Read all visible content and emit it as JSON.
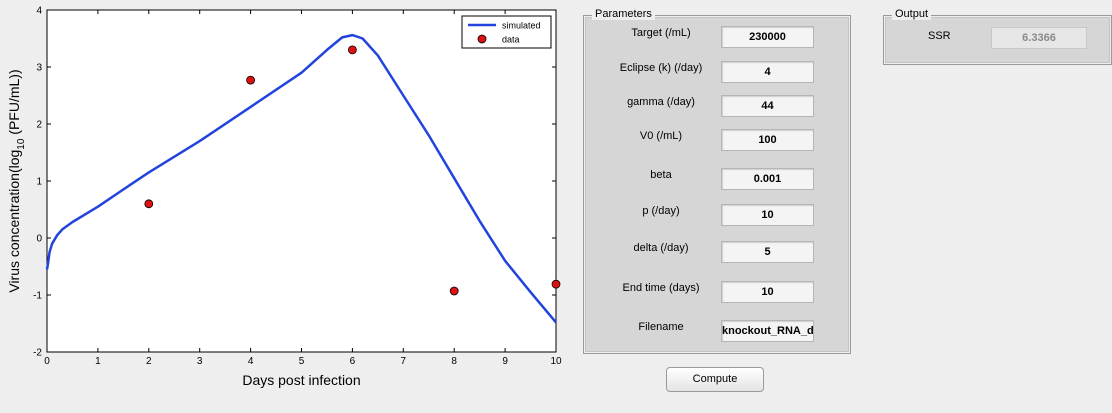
{
  "chart_data": {
    "type": "line",
    "xlabel": "Days post infection",
    "ylabel_prefix": "Virus concentration(log",
    "ylabel_sub": "10",
    "ylabel_suffix": " (PFU/mL))",
    "xlim": [
      0,
      10
    ],
    "ylim": [
      -2,
      4
    ],
    "xticks": [
      0,
      1,
      2,
      3,
      4,
      5,
      6,
      7,
      8,
      9,
      10
    ],
    "yticks": [
      -2,
      -1,
      0,
      1,
      2,
      3,
      4
    ],
    "grid": false,
    "legend_position": "top-right",
    "series": [
      {
        "name": "simulated",
        "kind": "line",
        "color": "#2244dd",
        "x": [
          0,
          0.02,
          0.05,
          0.1,
          0.2,
          0.3,
          0.5,
          1.0,
          1.5,
          2.0,
          3.0,
          4.0,
          5.0,
          5.5,
          5.8,
          6.0,
          6.2,
          6.5,
          7.0,
          7.5,
          8.0,
          8.5,
          9.0,
          9.5,
          10.0
        ],
        "y": [
          -0.55,
          -0.45,
          -0.25,
          -0.1,
          0.05,
          0.15,
          0.28,
          0.55,
          0.85,
          1.15,
          1.7,
          2.3,
          2.9,
          3.3,
          3.52,
          3.56,
          3.5,
          3.2,
          2.5,
          1.8,
          1.05,
          0.3,
          -0.4,
          -0.95,
          -1.48
        ]
      },
      {
        "name": "data",
        "kind": "scatter",
        "color": "#dd1111",
        "x": [
          2,
          4,
          6,
          8,
          10
        ],
        "y": [
          0.6,
          2.77,
          3.3,
          -0.93,
          -0.81
        ]
      }
    ]
  },
  "parameters": {
    "title": "Parameters",
    "items": [
      {
        "label": "Target (/mL)",
        "value": "230000"
      },
      {
        "label": "Eclipse (k) (/day)",
        "value": "4"
      },
      {
        "label": "gamma (/day)",
        "value": "44"
      },
      {
        "label": "V0 (/mL)",
        "value": "100"
      },
      {
        "label": "beta",
        "value": "0.001"
      },
      {
        "label": "p (/day)",
        "value": "10"
      },
      {
        "label": "delta (/day)",
        "value": "5"
      },
      {
        "label": "End time (days)",
        "value": "10"
      },
      {
        "label": "Filename",
        "value": "knockout_RNA_div"
      }
    ]
  },
  "output": {
    "title": "Output",
    "ssr_label": "SSR",
    "ssr_value": "6.3366"
  },
  "compute_label": "Compute"
}
